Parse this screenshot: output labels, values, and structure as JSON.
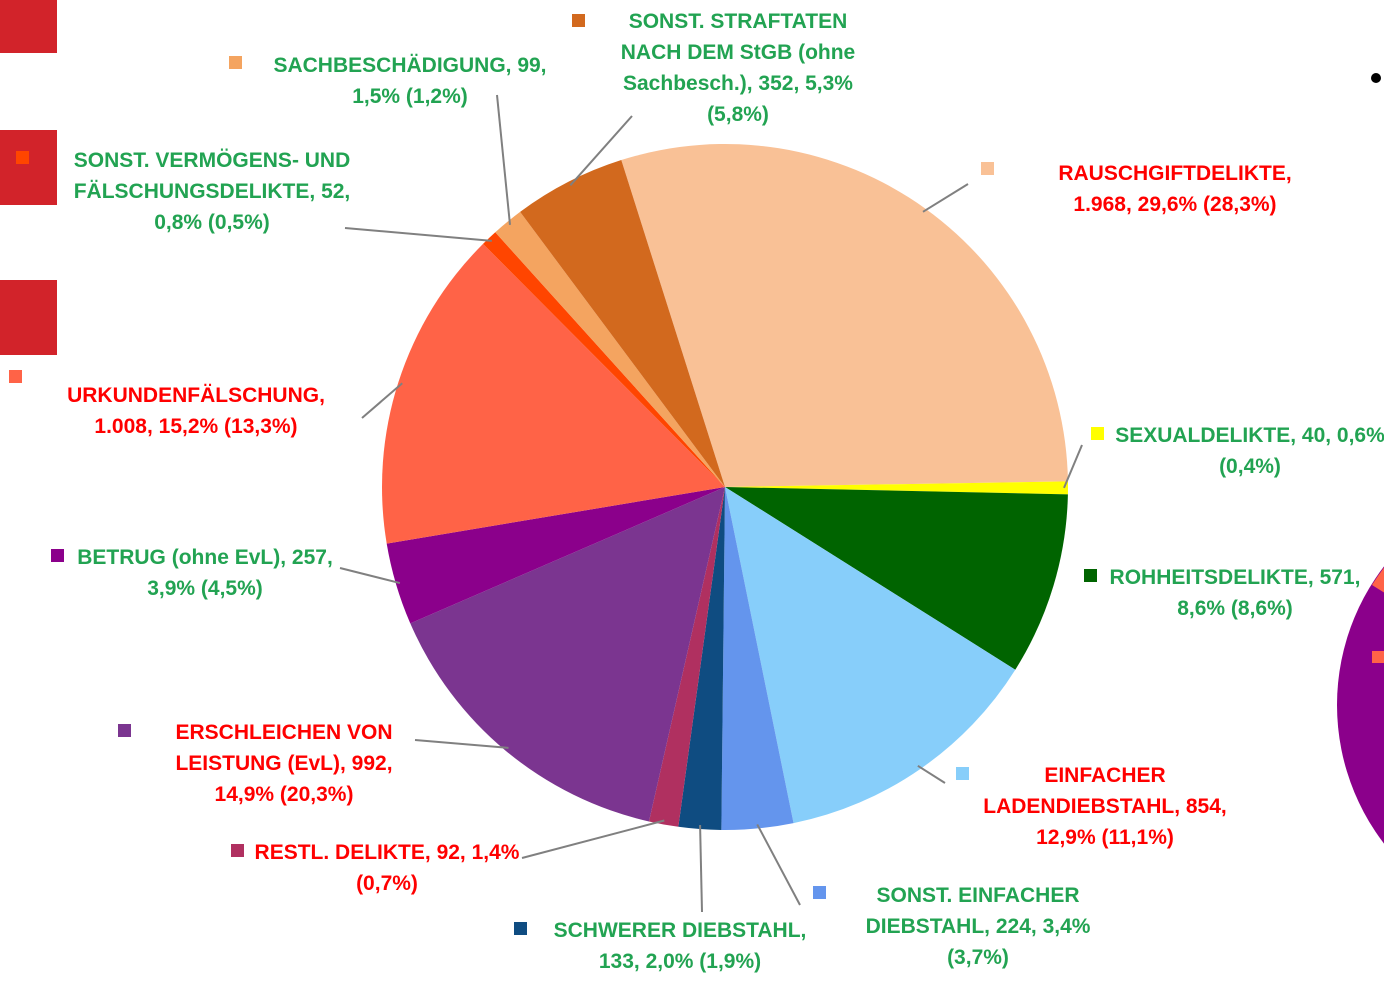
{
  "chart_data": {
    "type": "pie",
    "categories": [
      "RAUSCHGIFTDELIKTE,",
      "SEXUALDELIKTE,",
      "ROHHEITSDELIKTE,",
      "EINFACHER LADENDIEBSTAHL,",
      "SONST. EINFACHER DIEBSTAHL,",
      "SCHWERER DIEBSTAHL,",
      "RESTL. DELIKTE,",
      "ERSCHLEICHEN VON LEISTUNG (EvL),",
      "BETRUG (ohne EvL),",
      "URKUNDENFÄLSCHUNG,",
      "SONST. VERMÖGENS- UND FÄLSCHUNGSDELIKTE,",
      "SACHBESCHÄDIGUNG,",
      "SONST. STRAFTATEN NACH DEM StGB (ohne Sachbesch.),"
    ],
    "values": [
      1968,
      40,
      571,
      854,
      224,
      133,
      92,
      992,
      257,
      1008,
      52,
      99,
      352
    ],
    "value_labels": [
      "1.968, 29,6% (28,3%)",
      "40, 0,6% (0,4%)",
      "571, 8,6% (8,6%)",
      "854, 12,9% (11,1%)",
      "224, 3,4% (3,7%)",
      "133, 2,0% (1,9%)",
      "92, 1,4% (0,7%)",
      "992, 14,9% (20,3%)",
      "257, 3,9% (4,5%)",
      "1.008, 15,2% (13,3%)",
      "52, 0,8% (0,5%)",
      "99, 1,5% (1,2%)",
      "352, 5,3% (5,8%)"
    ],
    "colors": [
      "#F9C196",
      "#FFFF00",
      "#006400",
      "#87CEFA",
      "#6495ED",
      "#0F4C81",
      "#B03060",
      "#7B3590",
      "#8B008B",
      "#FF6347",
      "#FF4500",
      "#F4A460",
      "#D2691E"
    ],
    "label_colors": [
      "#FF0000",
      "#22A352",
      "#22A352",
      "#FF0000",
      "#22A352",
      "#22A352",
      "#FF0000",
      "#FF0000",
      "#22A352",
      "#FF0000",
      "#22A352",
      "#22A352",
      "#22A352"
    ]
  }
}
